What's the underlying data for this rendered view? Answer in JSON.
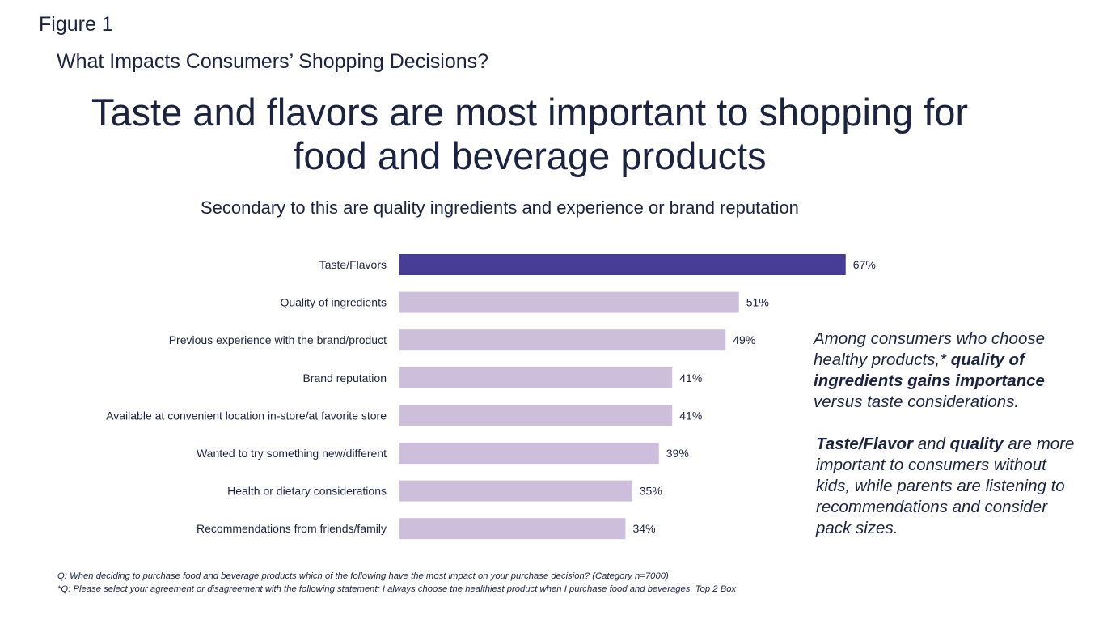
{
  "figure_label": "Figure 1",
  "section_title": "What Impacts Consumers’ Shopping Decisions?",
  "headline_line1": "Taste and flavors are most important to shopping for",
  "headline_line2": "food and beverage products",
  "subheadline": "Secondary to this are quality ingredients and experience or brand reputation",
  "colors": {
    "highlight_bar": "#483d96",
    "default_bar": "#cdbfdc",
    "text": "#1c2340"
  },
  "chart_data": {
    "type": "bar",
    "orientation": "horizontal",
    "title": "Secondary to this are quality ingredients and experience or brand reputation",
    "xlabel": "",
    "ylabel": "",
    "unit": "%",
    "xlim": [
      0,
      67
    ],
    "grid": false,
    "legend": "none",
    "categories": [
      "Taste/Flavors",
      "Quality of ingredients",
      "Previous experience with the brand/product",
      "Brand reputation",
      "Available at convenient location in-store/at favorite store",
      "Wanted to try something new/different",
      "Health or dietary considerations",
      "Recommendations from friends/family"
    ],
    "values": [
      67,
      51,
      49,
      41,
      41,
      39,
      35,
      34
    ],
    "value_labels": [
      "67%",
      "51%",
      "49%",
      "41%",
      "41%",
      "39%",
      "35%",
      "34%"
    ],
    "highlighted_index": 0
  },
  "callouts": [
    {
      "segments": [
        {
          "text": "Among consumers who choose healthy products,* ",
          "bold": false
        },
        {
          "text": "quality of ingredients gains importance",
          "bold": true
        },
        {
          "text": " versus taste considerations.",
          "bold": false
        }
      ]
    },
    {
      "segments": [
        {
          "text": "Taste/Flavor",
          "bold": true
        },
        {
          "text": " and ",
          "bold": false
        },
        {
          "text": "quality",
          "bold": true
        },
        {
          "text": " are more important to consumers without kids, while parents are listening to recommendations and consider pack sizes.",
          "bold": false
        }
      ]
    }
  ],
  "footnotes": [
    "Q: When deciding to purchase food and beverage products which of the following have the most impact on your purchase decision? (Category n=7000)",
    "*Q: Please select your agreement or disagreement with the following statement: I always choose the healthiest product when I purchase food and beverages. Top 2 Box"
  ]
}
